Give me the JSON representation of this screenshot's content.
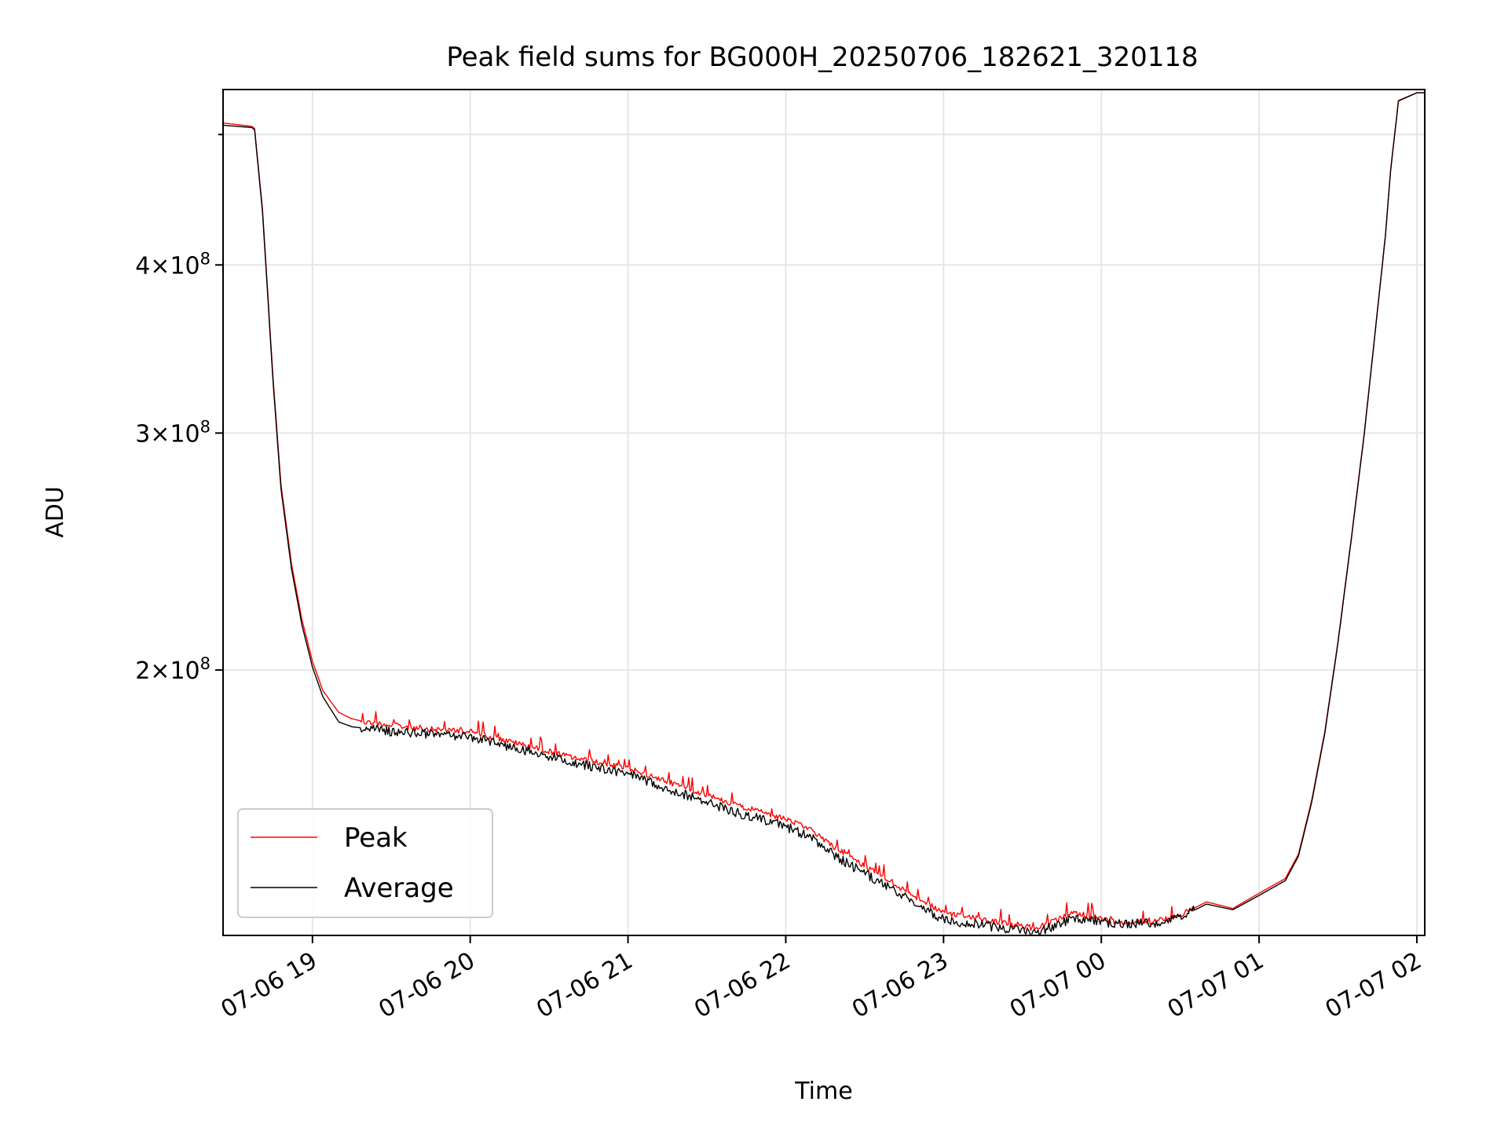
{
  "chart_data": {
    "type": "line",
    "title": "Peak field sums for BG000H_20250706_182621_320118",
    "xlabel": "Time",
    "ylabel": "ADU",
    "yscale": "log",
    "grid": true,
    "legend_position": "lower-left",
    "xlim": [
      "2025-07-06 18:26",
      "2025-07-07 02:03"
    ],
    "ylim": [
      127000000,
      540000000
    ],
    "x_ticks": [
      {
        "value": "2025-07-06 19:00",
        "label": "07-06 19"
      },
      {
        "value": "2025-07-06 20:00",
        "label": "07-06 20"
      },
      {
        "value": "2025-07-06 21:00",
        "label": "07-06 21"
      },
      {
        "value": "2025-07-06 22:00",
        "label": "07-06 22"
      },
      {
        "value": "2025-07-06 23:00",
        "label": "07-06 23"
      },
      {
        "value": "2025-07-07 00:00",
        "label": "07-07 00"
      },
      {
        "value": "2025-07-07 01:00",
        "label": "07-07 01"
      },
      {
        "value": "2025-07-07 02:00",
        "label": "07-07 02"
      }
    ],
    "y_ticks": [
      {
        "value": 200000000,
        "mantissa": "2",
        "base": "10",
        "exp": "8"
      },
      {
        "value": 300000000,
        "mantissa": "3",
        "base": "10",
        "exp": "8"
      },
      {
        "value": 400000000,
        "mantissa": "4",
        "base": "10",
        "exp": "8"
      }
    ],
    "y_minor_ticks": [
      500000000
    ],
    "series": [
      {
        "name": "Peak",
        "color": "#ff0000",
        "x": [
          "2025-07-06 18:26",
          "2025-07-06 18:37",
          "2025-07-06 18:38",
          "2025-07-06 18:41",
          "2025-07-06 18:45",
          "2025-07-06 18:48",
          "2025-07-06 18:52",
          "2025-07-06 18:56",
          "2025-07-06 19:00",
          "2025-07-06 19:04",
          "2025-07-06 19:10",
          "2025-07-06 19:15",
          "2025-07-06 19:20",
          "2025-07-06 19:30",
          "2025-07-06 19:40",
          "2025-07-06 20:00",
          "2025-07-06 20:20",
          "2025-07-06 20:40",
          "2025-07-06 21:00",
          "2025-07-06 21:20",
          "2025-07-06 21:40",
          "2025-07-06 22:00",
          "2025-07-06 22:10",
          "2025-07-06 22:20",
          "2025-07-06 22:40",
          "2025-07-06 23:00",
          "2025-07-06 23:20",
          "2025-07-06 23:35",
          "2025-07-06 23:50",
          "2025-07-07 00:05",
          "2025-07-07 00:20",
          "2025-07-07 00:30",
          "2025-07-07 00:40",
          "2025-07-07 00:50",
          "2025-07-07 01:00",
          "2025-07-07 01:10",
          "2025-07-07 01:15",
          "2025-07-07 01:20",
          "2025-07-07 01:25",
          "2025-07-07 01:30",
          "2025-07-07 01:35",
          "2025-07-07 01:40",
          "2025-07-07 01:45",
          "2025-07-07 01:48",
          "2025-07-07 01:50",
          "2025-07-07 01:53",
          "2025-07-07 02:00",
          "2025-07-07 02:03"
        ],
        "values": [
          510000000,
          507000000,
          505000000,
          440000000,
          330000000,
          275000000,
          240000000,
          218000000,
          203000000,
          193000000,
          186000000,
          184000000,
          183000000,
          182000000,
          181000000,
          180000000,
          176000000,
          172000000,
          169000000,
          164000000,
          159000000,
          155000000,
          152000000,
          147000000,
          139000000,
          132000000,
          130000000,
          128500000,
          132000000,
          130000000,
          130000000,
          131500000,
          134500000,
          133000000,
          136500000,
          140000000,
          146000000,
          160000000,
          180000000,
          210000000,
          250000000,
          300000000,
          370000000,
          420000000,
          470000000,
          530000000,
          537000000,
          537000000
        ]
      },
      {
        "name": "Average",
        "color": "#000000",
        "x": [
          "2025-07-06 18:26",
          "2025-07-06 18:37",
          "2025-07-06 18:38",
          "2025-07-06 18:41",
          "2025-07-06 18:45",
          "2025-07-06 18:48",
          "2025-07-06 18:52",
          "2025-07-06 18:56",
          "2025-07-06 19:00",
          "2025-07-06 19:04",
          "2025-07-06 19:10",
          "2025-07-06 19:15",
          "2025-07-06 19:20",
          "2025-07-06 19:30",
          "2025-07-06 19:40",
          "2025-07-06 20:00",
          "2025-07-06 20:20",
          "2025-07-06 20:40",
          "2025-07-06 21:00",
          "2025-07-06 21:20",
          "2025-07-06 21:40",
          "2025-07-06 22:00",
          "2025-07-06 22:10",
          "2025-07-06 22:20",
          "2025-07-06 22:40",
          "2025-07-06 23:00",
          "2025-07-06 23:20",
          "2025-07-06 23:35",
          "2025-07-06 23:50",
          "2025-07-07 00:05",
          "2025-07-07 00:20",
          "2025-07-07 00:30",
          "2025-07-07 00:40",
          "2025-07-07 00:50",
          "2025-07-07 01:00",
          "2025-07-07 01:10",
          "2025-07-07 01:15",
          "2025-07-07 01:20",
          "2025-07-07 01:25",
          "2025-07-07 01:30",
          "2025-07-07 01:35",
          "2025-07-07 01:40",
          "2025-07-07 01:45",
          "2025-07-07 01:48",
          "2025-07-07 01:50",
          "2025-07-07 01:53",
          "2025-07-07 02:00",
          "2025-07-07 02:03"
        ],
        "values": [
          508000000,
          506000000,
          504000000,
          438000000,
          328000000,
          273000000,
          238000000,
          216000000,
          201000000,
          191000000,
          183000000,
          181500000,
          181000000,
          180000000,
          179500000,
          178500000,
          174500000,
          170500000,
          167500000,
          162000000,
          157000000,
          153000000,
          150000000,
          145000000,
          137500000,
          130500000,
          128700000,
          127500000,
          131000000,
          129500000,
          129700000,
          131000000,
          134000000,
          132700000,
          136000000,
          139500000,
          145500000,
          159500000,
          179500000,
          209500000,
          249500000,
          299500000,
          369500000,
          419500000,
          469500000,
          529500000,
          537000000,
          537000000
        ]
      }
    ]
  }
}
